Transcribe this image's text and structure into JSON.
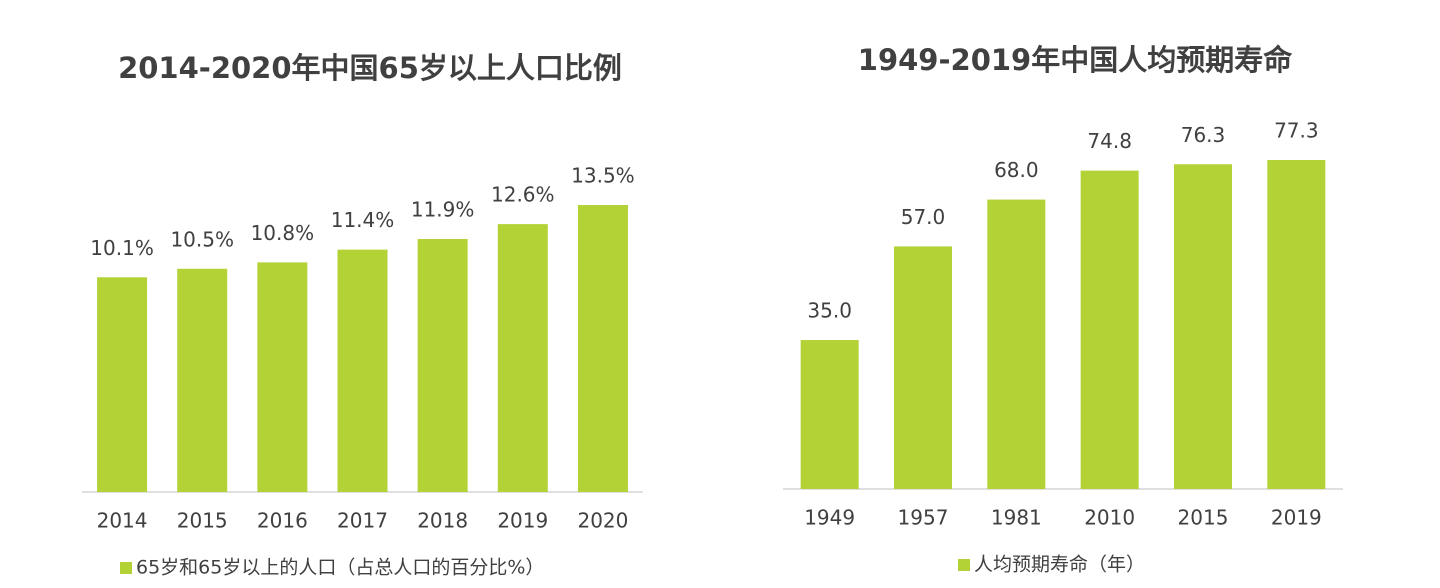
{
  "chart_data": [
    {
      "type": "bar",
      "title": "2014-2020年中国65岁以上人口比例",
      "categories": [
        "2014",
        "2015",
        "2016",
        "2017",
        "2018",
        "2019",
        "2020"
      ],
      "series": [
        {
          "name": "65岁和65岁以上的人口（占总人口的百分比%）",
          "color": "#b2d235",
          "values": [
            10.1,
            10.5,
            10.8,
            11.4,
            11.9,
            12.6,
            13.5
          ],
          "value_labels": [
            "10.1%",
            "10.5%",
            "10.8%",
            "11.4%",
            "11.9%",
            "12.6%",
            "13.5%"
          ]
        }
      ]
    },
    {
      "type": "bar",
      "title": "1949-2019年中国人均预期寿命",
      "categories": [
        "1949",
        "1957",
        "1981",
        "2010",
        "2015",
        "2019"
      ],
      "series": [
        {
          "name": "人均预期寿命（年）",
          "color": "#b2d235",
          "values": [
            35,
            57,
            68,
            74.8,
            76.3,
            77.3
          ],
          "value_labels": [
            "35.0",
            "57.0",
            "68.0",
            "74.8",
            "76.3",
            "77.3"
          ]
        }
      ]
    }
  ]
}
